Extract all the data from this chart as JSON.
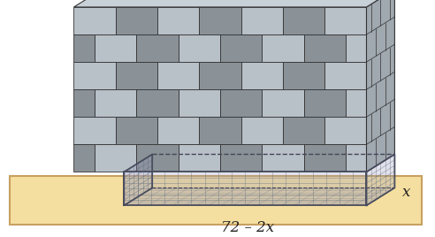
{
  "bg_color": "#ffffff",
  "ground_color": "#f5dfa0",
  "ground_border": "#c8a060",
  "wall_light": "#b8c0c8",
  "wall_dark": "#8a9298",
  "wall_side_color": "#a0a8b0",
  "wall_top_color": "#c8d0d8",
  "brick_line": "#333333",
  "fence_line": "#444455",
  "fence_fill": "#9999bb",
  "fence_alpha": 0.28,
  "mesh_color": "#556677",
  "mesh_alpha": 0.55,
  "label_front": "72 – 2x",
  "label_side": "x",
  "font_size": 12
}
